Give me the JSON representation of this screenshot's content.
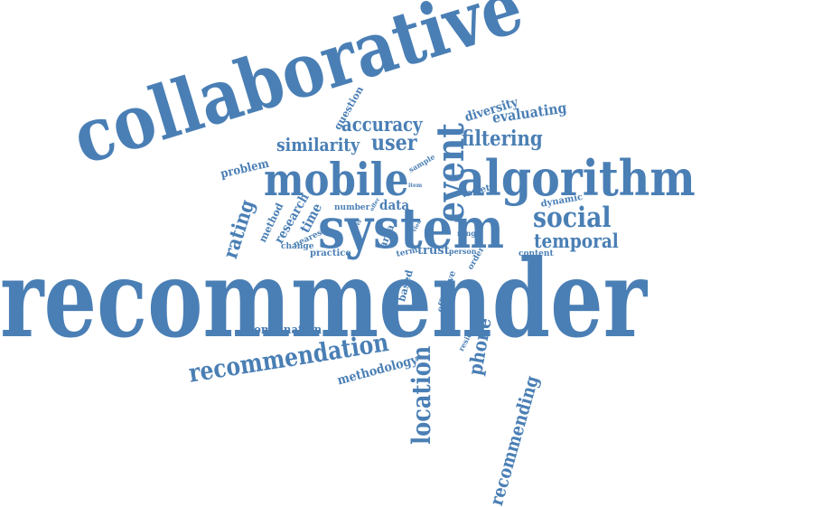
{
  "color": "#4a7fb5",
  "words": {
    "recommender": "recommender",
    "collaborative": "collaborative",
    "system": "system",
    "algorithm": "algorithm",
    "mobile": "mobile",
    "event": "event",
    "social": "social",
    "temporal": "temporal",
    "filtering": "filtering",
    "accuracy": "accuracy",
    "similarity": "similarity",
    "user": "user",
    "evaluating": "evaluating",
    "diversity": "diversity",
    "question": "question",
    "recommendation": "recommendation",
    "location": "location",
    "recommending": "recommending",
    "phone": "phone",
    "methodology": "methodology",
    "combination": "combination",
    "rating": "rating",
    "research": "research",
    "time": "time",
    "data": "data",
    "problem": "problem",
    "method": "method",
    "nearest": "nearest",
    "change": "change",
    "practice": "practice",
    "number": "number",
    "trust": "trust",
    "person": "person",
    "term": "term",
    "range": "range",
    "variety": "variety",
    "dynamic": "dynamic",
    "content": "content",
    "order": "order",
    "area": "area",
    "based": "based",
    "effective": "effective",
    "resident": "resident",
    "sample": "sample",
    "item": "item",
    "novel": "novel",
    "offer": "offer",
    "view": "view",
    "cold": "cold"
  }
}
